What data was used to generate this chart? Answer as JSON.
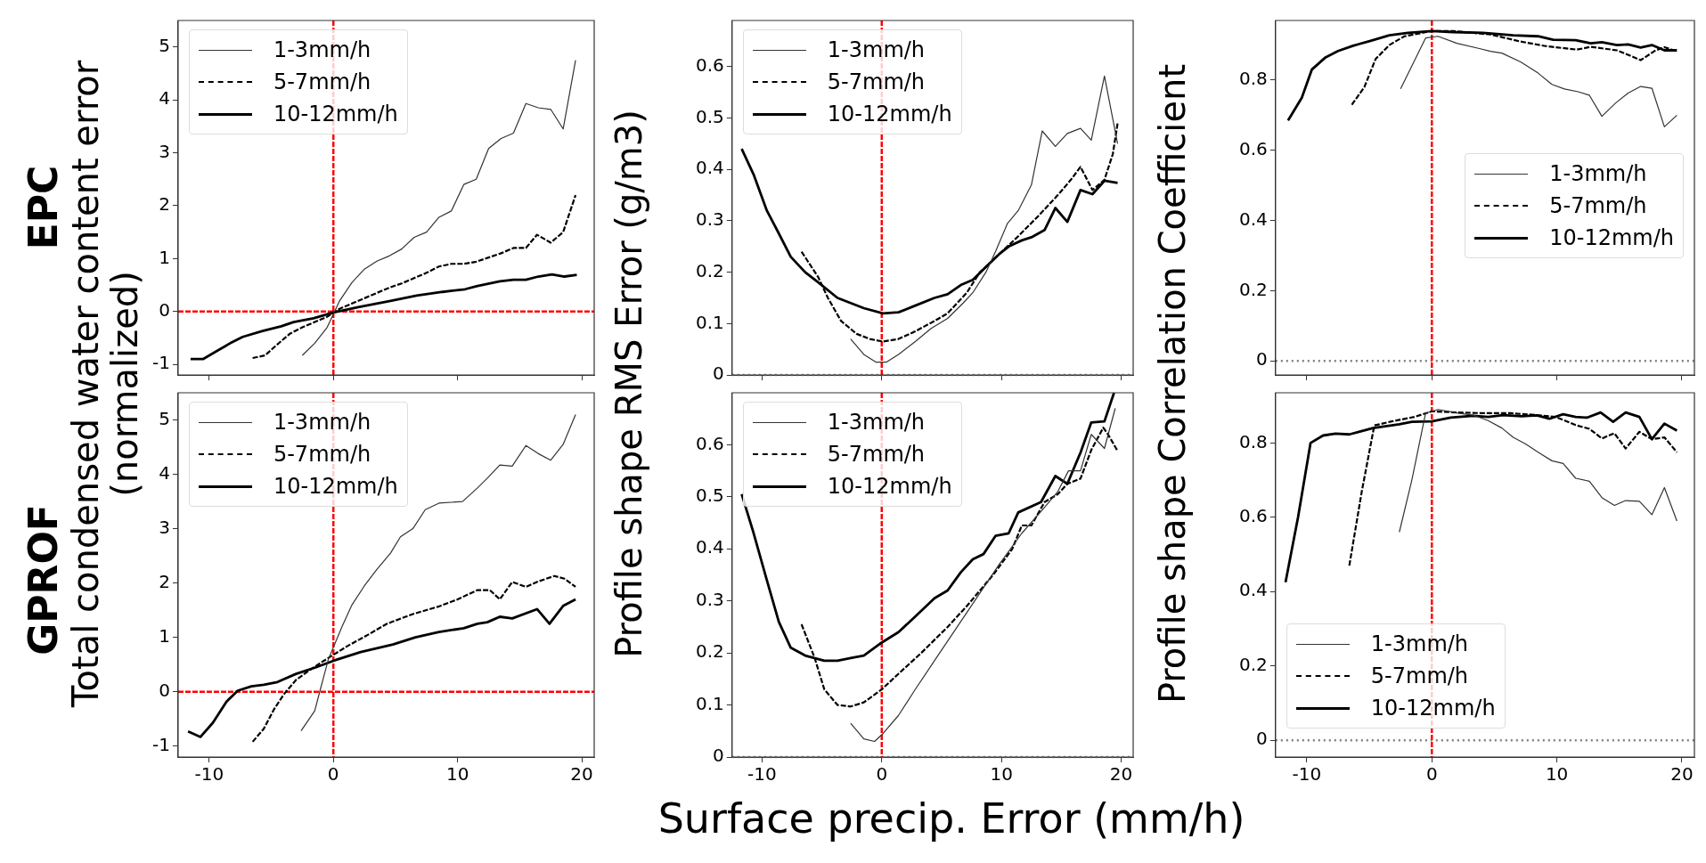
{
  "chart_data": [
    {
      "type": "line",
      "title": "EPC",
      "xlim": [
        -12.5,
        21
      ],
      "xticks": [
        -10,
        0,
        10,
        20
      ],
      "ylim": [
        -1.2,
        5.5
      ],
      "yticks": [
        -1,
        0,
        1,
        2,
        3,
        4,
        5
      ],
      "tick_labels": "y",
      "legend": "top left",
      "ref_lines": [
        {
          "axis": "x",
          "value": 0,
          "color": "#ff0000",
          "line_style": "dashed"
        },
        {
          "axis": "y",
          "value": 0,
          "color": "#ff0000",
          "line_style": "dashed"
        }
      ],
      "series": [
        {
          "name": "1-3mm/h",
          "color": "#333333",
          "line_style": "solid",
          "x": [
            -2.5,
            -1.5,
            -0.5,
            0,
            0.5,
            1.5,
            2.5,
            3.5,
            4.5,
            5.5,
            6.5,
            7.5,
            8.5,
            9.5,
            10.5,
            11.5,
            12.5,
            13.5,
            14.5,
            15.5,
            16.5,
            17.5,
            18.5,
            19.5
          ],
          "values": [
            -0.83,
            -0.6,
            -0.3,
            -0.05,
            0.2,
            0.55,
            0.8,
            0.95,
            1.05,
            1.18,
            1.4,
            1.5,
            1.78,
            1.9,
            2.4,
            2.5,
            3.08,
            3.27,
            3.37,
            3.93,
            3.85,
            3.82,
            3.45,
            4.75
          ]
        },
        {
          "name": "5-7mm/h",
          "color": "#000000",
          "line_style": "dashed",
          "x": [
            -6.5,
            -5.5,
            -4.5,
            -3.5,
            -2.5,
            -1.5,
            -0.5,
            0.5,
            1.5,
            2.5,
            3.5,
            4.5,
            5.5,
            6.5,
            7.5,
            8.5,
            9.5,
            10.5,
            11.5,
            12.5,
            13.5,
            14.5,
            15.5,
            16.4,
            17.5,
            18.5,
            19.5
          ],
          "values": [
            -0.88,
            -0.83,
            -0.62,
            -0.42,
            -0.3,
            -0.2,
            -0.1,
            0.05,
            0.15,
            0.25,
            0.35,
            0.45,
            0.53,
            0.63,
            0.73,
            0.85,
            0.9,
            0.9,
            0.94,
            1.02,
            1.1,
            1.2,
            1.2,
            1.45,
            1.3,
            1.5,
            2.2
          ]
        },
        {
          "name": "10-12mm/h",
          "color": "#000000",
          "line_style": "solid",
          "x": [
            -11.5,
            -10.5,
            -9.4,
            -8.3,
            -7.3,
            -5.7,
            -4.2,
            -3.2,
            -1.6,
            0,
            2,
            4.6,
            6.7,
            8.8,
            10.6,
            11.6,
            13.4,
            14.5,
            15.5,
            16.5,
            17.6,
            18.6,
            19.6
          ],
          "values": [
            -0.9,
            -0.9,
            -0.75,
            -0.6,
            -0.48,
            -0.37,
            -0.28,
            -0.2,
            -0.13,
            -0.02,
            0.08,
            0.2,
            0.3,
            0.37,
            0.42,
            0.48,
            0.57,
            0.6,
            0.6,
            0.66,
            0.7,
            0.66,
            0.69
          ]
        }
      ]
    },
    {
      "type": "line",
      "xlim": [
        -12.5,
        21
      ],
      "xticks": [
        -10,
        0,
        10,
        20
      ],
      "ylim": [
        0,
        0.69
      ],
      "yticks": [
        0,
        0.1,
        0.2,
        0.3,
        0.4,
        0.5,
        0.6
      ],
      "tick_labels": "y",
      "legend": "top left",
      "ref_lines": [
        {
          "axis": "y",
          "value": 0,
          "color": "#808080",
          "line_style": "dotted"
        },
        {
          "axis": "x",
          "value": 0,
          "color": "#ff0000",
          "line_style": "dashed"
        }
      ],
      "series": [
        {
          "name": "1-3mm/h",
          "color": "#333333",
          "line_style": "solid",
          "x": [
            -2.6,
            -1.5,
            -0.5,
            0.4,
            1.4,
            2.8,
            4.1,
            5.5,
            6.8,
            7.6,
            8.7,
            9.5,
            10.5,
            11.4,
            12.5,
            13.4,
            14.5,
            15.5,
            16.6,
            17.5,
            18.6,
            19.7
          ],
          "values": [
            0.07,
            0.04,
            0.025,
            0.025,
            0.04,
            0.065,
            0.09,
            0.11,
            0.14,
            0.16,
            0.2,
            0.24,
            0.295,
            0.32,
            0.37,
            0.475,
            0.445,
            0.47,
            0.48,
            0.457,
            0.582,
            0.45
          ]
        },
        {
          "name": "5-7mm/h",
          "color": "#000000",
          "line_style": "dashed",
          "x": [
            -6.7,
            -5.3,
            -4.5,
            -3.4,
            -2.1,
            -1,
            0.1,
            1.4,
            2.8,
            4.4,
            5.5,
            7.1,
            8.2,
            9.8,
            11.4,
            13.1,
            14.7,
            15.8,
            16.6,
            17.6,
            18.6,
            19.3,
            19.7
          ],
          "values": [
            0.24,
            0.19,
            0.15,
            0.105,
            0.08,
            0.07,
            0.065,
            0.07,
            0.085,
            0.105,
            0.12,
            0.16,
            0.2,
            0.235,
            0.27,
            0.31,
            0.35,
            0.38,
            0.405,
            0.36,
            0.38,
            0.43,
            0.49
          ]
        },
        {
          "name": "10-12mm/h",
          "color": "#000000",
          "line_style": "solid",
          "x": [
            -11.7,
            -10.7,
            -9.6,
            -8.7,
            -7.6,
            -6.4,
            -5.3,
            -3.7,
            -2.6,
            -1.5,
            0.1,
            1.4,
            2.8,
            4.4,
            5.5,
            6.6,
            7.6,
            8.7,
            9.8,
            10.6,
            11.7,
            12.5,
            13.6,
            14.5,
            15.5,
            16.6,
            17.6,
            18.6,
            19.7
          ],
          "values": [
            0.44,
            0.39,
            0.32,
            0.28,
            0.23,
            0.2,
            0.18,
            0.15,
            0.14,
            0.13,
            0.12,
            0.122,
            0.135,
            0.15,
            0.157,
            0.175,
            0.185,
            0.21,
            0.235,
            0.25,
            0.262,
            0.268,
            0.282,
            0.325,
            0.298,
            0.36,
            0.352,
            0.378,
            0.374
          ]
        }
      ]
    },
    {
      "type": "line",
      "xlim": [
        -12.5,
        21
      ],
      "xticks": [
        -10,
        0,
        10,
        20
      ],
      "ylim": [
        -0.04,
        0.97
      ],
      "yticks": [
        0,
        0.2,
        0.4,
        0.6,
        0.8
      ],
      "tick_labels": "y",
      "legend": "right",
      "ref_lines": [
        {
          "axis": "y",
          "value": 0,
          "color": "#808080",
          "line_style": "dotted"
        },
        {
          "axis": "x",
          "value": 0,
          "color": "#ff0000",
          "line_style": "dashed"
        }
      ],
      "series": [
        {
          "name": "1-3mm/h",
          "color": "#333333",
          "line_style": "solid",
          "x": [
            -2.5,
            -0.5,
            0.5,
            2,
            3.8,
            4.7,
            5.6,
            7.1,
            8.5,
            9.6,
            10.6,
            11.7,
            12.6,
            13.6,
            14.7,
            15.7,
            16.7,
            17.6,
            18.6,
            19.6
          ],
          "values": [
            0.775,
            0.92,
            0.925,
            0.905,
            0.89,
            0.882,
            0.877,
            0.852,
            0.82,
            0.788,
            0.775,
            0.767,
            0.757,
            0.697,
            0.735,
            0.763,
            0.782,
            0.777,
            0.667,
            0.7
          ]
        },
        {
          "name": "5-7mm/h",
          "color": "#000000",
          "line_style": "dashed",
          "x": [
            -6.4,
            -5.4,
            -4.5,
            -3.4,
            -2.2,
            0,
            1.7,
            4.7,
            7.1,
            9.1,
            11.6,
            12.7,
            14.8,
            15.5,
            16.7,
            17.9,
            18.6,
            19.6
          ],
          "values": [
            0.73,
            0.78,
            0.86,
            0.9,
            0.925,
            0.94,
            0.94,
            0.93,
            0.91,
            0.897,
            0.887,
            0.895,
            0.885,
            0.875,
            0.857,
            0.885,
            0.894,
            0.882
          ]
        },
        {
          "name": "10-12mm/h",
          "color": "#000000",
          "line_style": "solid",
          "x": [
            -11.5,
            -10.4,
            -9.6,
            -8.5,
            -7.5,
            -6.3,
            -4.9,
            -3.4,
            -1.9,
            0,
            1.7,
            4.1,
            6.5,
            8.5,
            9.7,
            11.5,
            12.7,
            13.6,
            14.8,
            15.7,
            16.7,
            17.6,
            18.6,
            19.6
          ],
          "values": [
            0.685,
            0.75,
            0.83,
            0.865,
            0.883,
            0.898,
            0.912,
            0.928,
            0.935,
            0.94,
            0.937,
            0.935,
            0.928,
            0.925,
            0.915,
            0.914,
            0.905,
            0.908,
            0.9,
            0.902,
            0.893,
            0.9,
            0.885,
            0.885
          ]
        }
      ]
    },
    {
      "type": "line",
      "title": "GPROF",
      "ylabel": "Total condensed water content error\n(normalized)",
      "xlim": [
        -12.5,
        21
      ],
      "xticks": [
        -10,
        0,
        10,
        20
      ],
      "ylim": [
        -1.2,
        5.5
      ],
      "yticks": [
        -1,
        0,
        1,
        2,
        3,
        4,
        5
      ],
      "legend": "top left",
      "ref_lines": [
        {
          "axis": "x",
          "value": 0,
          "color": "#ff0000",
          "line_style": "dashed"
        },
        {
          "axis": "y",
          "value": 0,
          "color": "#ff0000",
          "line_style": "dashed"
        }
      ],
      "series": [
        {
          "name": "1-3mm/h",
          "color": "#333333",
          "line_style": "solid",
          "x": [
            -2.6,
            -1.5,
            -1.1,
            -0.4,
            0.7,
            1.5,
            2.5,
            3.5,
            4.6,
            5.4,
            6.4,
            7.4,
            8.5,
            10.4,
            11.6,
            12.4,
            13.4,
            14.4,
            15.5,
            16.5,
            17.5,
            18.5,
            19.5
          ],
          "values": [
            -0.72,
            -0.35,
            0,
            0.6,
            1.2,
            1.6,
            1.95,
            2.25,
            2.55,
            2.85,
            3,
            3.35,
            3.47,
            3.5,
            3.75,
            3.93,
            4.17,
            4.15,
            4.53,
            4.38,
            4.26,
            4.55,
            5.1
          ]
        },
        {
          "name": "5-7mm/h",
          "color": "#000000",
          "line_style": "dashed",
          "x": [
            -6.5,
            -5.6,
            -4.8,
            -4,
            -3,
            -1.9,
            -0.9,
            0,
            1.2,
            2.8,
            4.3,
            6.4,
            8.5,
            10,
            11.6,
            12.6,
            13.4,
            14.4,
            15.5,
            16.5,
            17.8,
            18.6,
            19.5
          ],
          "values": [
            -0.92,
            -0.68,
            -0.33,
            -0.05,
            0.22,
            0.4,
            0.55,
            0.68,
            0.85,
            1.05,
            1.25,
            1.43,
            1.57,
            1.7,
            1.87,
            1.87,
            1.7,
            2.02,
            1.93,
            2.03,
            2.13,
            2.08,
            1.93
          ]
        },
        {
          "name": "10-12mm/h",
          "color": "#000000",
          "line_style": "solid",
          "x": [
            -11.7,
            -10.7,
            -9.7,
            -8.6,
            -7.7,
            -6.6,
            -5.6,
            -4.5,
            -3,
            -1.4,
            0,
            2.2,
            4.8,
            6.6,
            8.5,
            10.5,
            11.6,
            12.4,
            13.4,
            14.4,
            16.4,
            17.4,
            18.5,
            19.5
          ],
          "values": [
            -0.73,
            -0.83,
            -0.57,
            -0.18,
            0.02,
            0.1,
            0.13,
            0.18,
            0.33,
            0.45,
            0.57,
            0.73,
            0.87,
            1,
            1.1,
            1.17,
            1.25,
            1.28,
            1.38,
            1.35,
            1.52,
            1.25,
            1.58,
            1.7
          ]
        }
      ]
    },
    {
      "type": "line",
      "ylabel": "Profile shape RMS Error (g/m3)",
      "xlabel": "Surface precip. Error (mm/h)",
      "xlim": [
        -12.5,
        21
      ],
      "xticks": [
        -10,
        0,
        10,
        20
      ],
      "ylim": [
        0,
        0.7
      ],
      "yticks": [
        0,
        0.1,
        0.2,
        0.3,
        0.4,
        0.5,
        0.6
      ],
      "legend": "top left",
      "ref_lines": [
        {
          "axis": "y",
          "value": 0,
          "color": "#808080",
          "line_style": "dotted"
        },
        {
          "axis": "x",
          "value": 0,
          "color": "#ff0000",
          "line_style": "dashed"
        }
      ],
      "series": [
        {
          "name": "1-3mm/h",
          "color": "#333333",
          "line_style": "solid",
          "x": [
            -2.6,
            -1.5,
            -0.6,
            0.1,
            1.4,
            2.8,
            4.4,
            6.3,
            8.2,
            9.8,
            11.7,
            13.6,
            14.7,
            15.6,
            16.6,
            17.5,
            18.6,
            19.5
          ],
          "values": [
            0.065,
            0.035,
            0.03,
            0.045,
            0.08,
            0.13,
            0.185,
            0.25,
            0.315,
            0.37,
            0.43,
            0.48,
            0.51,
            0.55,
            0.55,
            0.62,
            0.593,
            0.67
          ]
        },
        {
          "name": "5-7mm/h",
          "color": "#000000",
          "line_style": "dashed",
          "x": [
            -6.7,
            -5.6,
            -4.8,
            -3.7,
            -2.6,
            -1.5,
            0,
            1.4,
            3.3,
            5.5,
            7.1,
            9.3,
            10.9,
            11.7,
            12.5,
            13.6,
            14.7,
            15.5,
            16.6,
            17.5,
            18.5,
            18.9,
            19.7
          ],
          "values": [
            0.255,
            0.19,
            0.13,
            0.1,
            0.097,
            0.105,
            0.13,
            0.16,
            0.2,
            0.25,
            0.29,
            0.35,
            0.4,
            0.445,
            0.445,
            0.49,
            0.505,
            0.525,
            0.535,
            0.59,
            0.633,
            0.62,
            0.588
          ]
        },
        {
          "name": "10-12mm/h",
          "color": "#000000",
          "line_style": "solid",
          "x": [
            -11.7,
            -10.7,
            -9.6,
            -8.6,
            -7.6,
            -6.4,
            -4.8,
            -3.7,
            -2.6,
            -1.5,
            0,
            1.4,
            2.8,
            4.4,
            5.5,
            6.6,
            7.6,
            8.5,
            9.5,
            10.6,
            11.4,
            13.3,
            14.5,
            15.5,
            16.6,
            17.5,
            18.6,
            19.4
          ],
          "values": [
            0.505,
            0.43,
            0.34,
            0.26,
            0.21,
            0.195,
            0.185,
            0.185,
            0.19,
            0.195,
            0.22,
            0.24,
            0.27,
            0.305,
            0.32,
            0.355,
            0.38,
            0.39,
            0.425,
            0.43,
            0.47,
            0.49,
            0.54,
            0.525,
            0.585,
            0.643,
            0.645,
            0.7
          ]
        }
      ]
    },
    {
      "type": "line",
      "ylabel": "Profile shape Correlation Coefficient",
      "xlim": [
        -12.5,
        21
      ],
      "xticks": [
        -10,
        0,
        10,
        20
      ],
      "ylim": [
        -0.045,
        0.935
      ],
      "yticks": [
        0,
        0.2,
        0.4,
        0.6,
        0.8
      ],
      "legend": "bottom left",
      "ref_lines": [
        {
          "axis": "y",
          "value": 0,
          "color": "#808080",
          "line_style": "dotted"
        },
        {
          "axis": "x",
          "value": 0,
          "color": "#ff0000",
          "line_style": "dashed"
        }
      ],
      "series": [
        {
          "name": "1-3mm/h",
          "color": "#333333",
          "line_style": "solid",
          "x": [
            -2.6,
            -1.6,
            -0.5,
            0.5,
            2.1,
            3.3,
            4.5,
            5.6,
            6.5,
            7.5,
            8.5,
            9.6,
            10.5,
            11.5,
            12.6,
            13.6,
            14.6,
            15.5,
            16.6,
            17.6,
            18.6,
            19.6
          ],
          "values": [
            0.56,
            0.7,
            0.88,
            0.89,
            0.88,
            0.875,
            0.86,
            0.84,
            0.815,
            0.797,
            0.775,
            0.752,
            0.745,
            0.705,
            0.697,
            0.653,
            0.632,
            0.645,
            0.643,
            0.607,
            0.68,
            0.59
          ]
        },
        {
          "name": "5-7mm/h",
          "color": "#000000",
          "line_style": "dashed",
          "x": [
            -6.6,
            -5.6,
            -4.6,
            -3.2,
            -1.4,
            0,
            2.1,
            4.2,
            6.3,
            8.4,
            9.9,
            11.5,
            12.6,
            13.6,
            14.6,
            15.5,
            16.6,
            17.6,
            18.6,
            19.6
          ],
          "values": [
            0.47,
            0.67,
            0.847,
            0.858,
            0.87,
            0.885,
            0.882,
            0.88,
            0.88,
            0.875,
            0.87,
            0.848,
            0.838,
            0.812,
            0.826,
            0.785,
            0.83,
            0.81,
            0.815,
            0.775
          ]
        },
        {
          "name": "10-12mm/h",
          "color": "#000000",
          "line_style": "solid",
          "x": [
            -11.7,
            -10.7,
            -9.7,
            -8.7,
            -7.7,
            -6.6,
            -4.7,
            -2.6,
            -1.6,
            0,
            1.5,
            3.3,
            4.5,
            5.7,
            7.2,
            8.4,
            9.4,
            10.5,
            11.5,
            12.4,
            13.5,
            14.5,
            15.5,
            16.6,
            17.6,
            18.6,
            19.6
          ],
          "values": [
            0.425,
            0.6,
            0.8,
            0.82,
            0.825,
            0.823,
            0.84,
            0.85,
            0.857,
            0.858,
            0.868,
            0.873,
            0.87,
            0.875,
            0.872,
            0.874,
            0.865,
            0.877,
            0.87,
            0.868,
            0.882,
            0.857,
            0.882,
            0.87,
            0.81,
            0.852,
            0.833
          ]
        }
      ]
    }
  ]
}
